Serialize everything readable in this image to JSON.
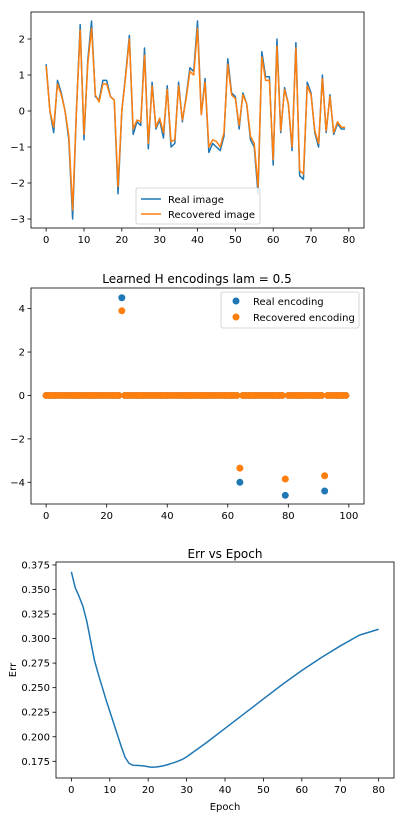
{
  "chart_data": [
    {
      "type": "line",
      "title": "",
      "xlabel": "",
      "ylabel": "",
      "xlim": [
        -4,
        84
      ],
      "ylim": [
        -3.25,
        2.75
      ],
      "xticks": [
        0,
        10,
        20,
        30,
        40,
        50,
        60,
        70,
        80
      ],
      "yticks": [
        -3,
        -2,
        -1,
        0,
        1,
        2
      ],
      "legend": "lower-center",
      "series": [
        {
          "name": "Real image",
          "color": "#1f77b4",
          "x": [
            0,
            1,
            2,
            3,
            4,
            5,
            6,
            7,
            8,
            9,
            10,
            11,
            12,
            13,
            14,
            15,
            16,
            17,
            18,
            19,
            20,
            21,
            22,
            23,
            24,
            25,
            26,
            27,
            28,
            29,
            30,
            31,
            32,
            33,
            34,
            35,
            36,
            37,
            38,
            39,
            40,
            41,
            42,
            43,
            44,
            45,
            46,
            47,
            48,
            49,
            50,
            51,
            52,
            53,
            54,
            55,
            56,
            57,
            58,
            59,
            60,
            61,
            62,
            63,
            64,
            65,
            66,
            67,
            68,
            69,
            70,
            71,
            72,
            73,
            74,
            75,
            76,
            77,
            78,
            79
          ],
          "y": [
            1.3,
            0.0,
            -0.6,
            0.85,
            0.5,
            0.0,
            -0.8,
            -3.0,
            0.0,
            2.4,
            -0.8,
            1.4,
            2.5,
            0.4,
            0.3,
            0.85,
            0.85,
            0.4,
            0.3,
            -2.3,
            0.0,
            1.0,
            2.1,
            -0.65,
            -0.3,
            -0.4,
            1.75,
            -1.05,
            0.8,
            -0.5,
            -0.25,
            -0.75,
            0.7,
            -1.0,
            -0.9,
            0.8,
            -0.3,
            0.4,
            1.2,
            1.1,
            2.5,
            -0.1,
            0.9,
            -1.15,
            -0.9,
            -1.0,
            -1.1,
            -0.7,
            1.45,
            0.5,
            0.4,
            -0.5,
            0.5,
            0.2,
            -0.8,
            -1.0,
            -2.3,
            1.65,
            0.95,
            0.95,
            -1.5,
            2.0,
            -0.6,
            0.65,
            0.2,
            -1.1,
            1.9,
            -1.8,
            -1.9,
            0.8,
            0.5,
            -0.6,
            -1.0,
            1.0,
            -0.6,
            0.45,
            -0.65,
            -0.35,
            -0.5,
            -0.5
          ]
        },
        {
          "name": "Recovered image",
          "color": "#ff7f0e",
          "x": [
            0,
            1,
            2,
            3,
            4,
            5,
            6,
            7,
            8,
            9,
            10,
            11,
            12,
            13,
            14,
            15,
            16,
            17,
            18,
            19,
            20,
            21,
            22,
            23,
            24,
            25,
            26,
            27,
            28,
            29,
            30,
            31,
            32,
            33,
            34,
            35,
            36,
            37,
            38,
            39,
            40,
            41,
            42,
            43,
            44,
            45,
            46,
            47,
            48,
            49,
            50,
            51,
            52,
            53,
            54,
            55,
            56,
            57,
            58,
            59,
            60,
            61,
            62,
            63,
            64,
            65,
            66,
            67,
            68,
            69,
            70,
            71,
            72,
            73,
            74,
            75,
            76,
            77,
            78,
            79
          ],
          "y": [
            1.25,
            0.0,
            -0.45,
            0.75,
            0.45,
            0.0,
            -0.7,
            -2.75,
            0.0,
            2.25,
            -0.65,
            1.3,
            2.3,
            0.45,
            0.25,
            0.75,
            0.75,
            0.4,
            0.3,
            -2.1,
            0.0,
            0.95,
            2.0,
            -0.5,
            -0.25,
            -0.3,
            1.55,
            -0.9,
            0.7,
            -0.45,
            -0.2,
            -0.6,
            0.6,
            -0.85,
            -0.8,
            0.7,
            -0.25,
            0.35,
            1.1,
            1.0,
            2.3,
            -0.1,
            0.8,
            -1.0,
            -0.8,
            -0.85,
            -1.0,
            -0.6,
            1.3,
            0.45,
            0.35,
            -0.4,
            0.45,
            0.2,
            -0.7,
            -0.9,
            -2.1,
            1.5,
            0.85,
            0.85,
            -1.35,
            1.8,
            -0.55,
            0.6,
            0.2,
            -1.0,
            1.75,
            -1.65,
            -1.75,
            0.7,
            0.45,
            -0.55,
            -0.9,
            0.9,
            -0.55,
            0.4,
            -0.6,
            -0.3,
            -0.45,
            -0.45
          ]
        }
      ]
    },
    {
      "type": "scatter",
      "title": "Learned H encodings lam = 0.5",
      "xlabel": "",
      "ylabel": "",
      "xlim": [
        -5,
        105
      ],
      "ylim": [
        -5.0,
        4.95
      ],
      "xticks": [
        0,
        20,
        40,
        60,
        80,
        100
      ],
      "yticks": [
        -4,
        -2,
        0,
        2,
        4
      ],
      "legend": "upper-right",
      "series": [
        {
          "name": "Real encoding",
          "color": "#1f77b4",
          "x_range": [
            0,
            99
          ],
          "zero_except": [
            [
              25,
              4.5
            ],
            [
              64,
              -4.0
            ],
            [
              79,
              -4.6
            ],
            [
              92,
              -4.4
            ]
          ]
        },
        {
          "name": "Recovered encoding",
          "color": "#ff7f0e",
          "x_range": [
            0,
            99
          ],
          "zero_except": [
            [
              25,
              3.9
            ],
            [
              64,
              -3.35
            ],
            [
              79,
              -3.85
            ],
            [
              92,
              -3.7
            ]
          ]
        }
      ]
    },
    {
      "type": "line",
      "title": "Err vs Epoch",
      "xlabel": "Epoch",
      "ylabel": "Err",
      "xlim": [
        -4,
        84
      ],
      "ylim": [
        0.158,
        0.378
      ],
      "xticks": [
        0,
        10,
        20,
        30,
        40,
        50,
        60,
        70,
        80
      ],
      "yticks": [
        0.175,
        0.2,
        0.225,
        0.25,
        0.275,
        0.3,
        0.325,
        0.35,
        0.375
      ],
      "ytick_labels": [
        "0.175",
        "0.200",
        "0.225",
        "0.250",
        "0.275",
        "0.300",
        "0.325",
        "0.350",
        "0.375"
      ],
      "legend": "none",
      "series": [
        {
          "name": "",
          "color": "#1f77b4",
          "x": [
            0,
            1,
            2,
            3,
            4,
            5,
            6,
            7,
            8,
            9,
            10,
            11,
            12,
            13,
            14,
            15,
            16,
            17,
            18,
            19,
            20,
            21,
            22,
            23,
            24,
            25,
            26,
            27,
            28,
            29,
            30,
            35,
            40,
            45,
            50,
            55,
            60,
            65,
            70,
            75,
            80
          ],
          "y": [
            0.368,
            0.352,
            0.343,
            0.333,
            0.318,
            0.298,
            0.278,
            0.264,
            0.251,
            0.238,
            0.226,
            0.214,
            0.202,
            0.19,
            0.179,
            0.173,
            0.171,
            0.1708,
            0.1706,
            0.1702,
            0.1695,
            0.169,
            0.1692,
            0.1697,
            0.1705,
            0.1715,
            0.1728,
            0.174,
            0.1755,
            0.1772,
            0.1795,
            0.1935,
            0.2085,
            0.2235,
            0.2385,
            0.2535,
            0.2675,
            0.2805,
            0.2925,
            0.3035,
            0.3095
          ]
        }
      ]
    }
  ]
}
